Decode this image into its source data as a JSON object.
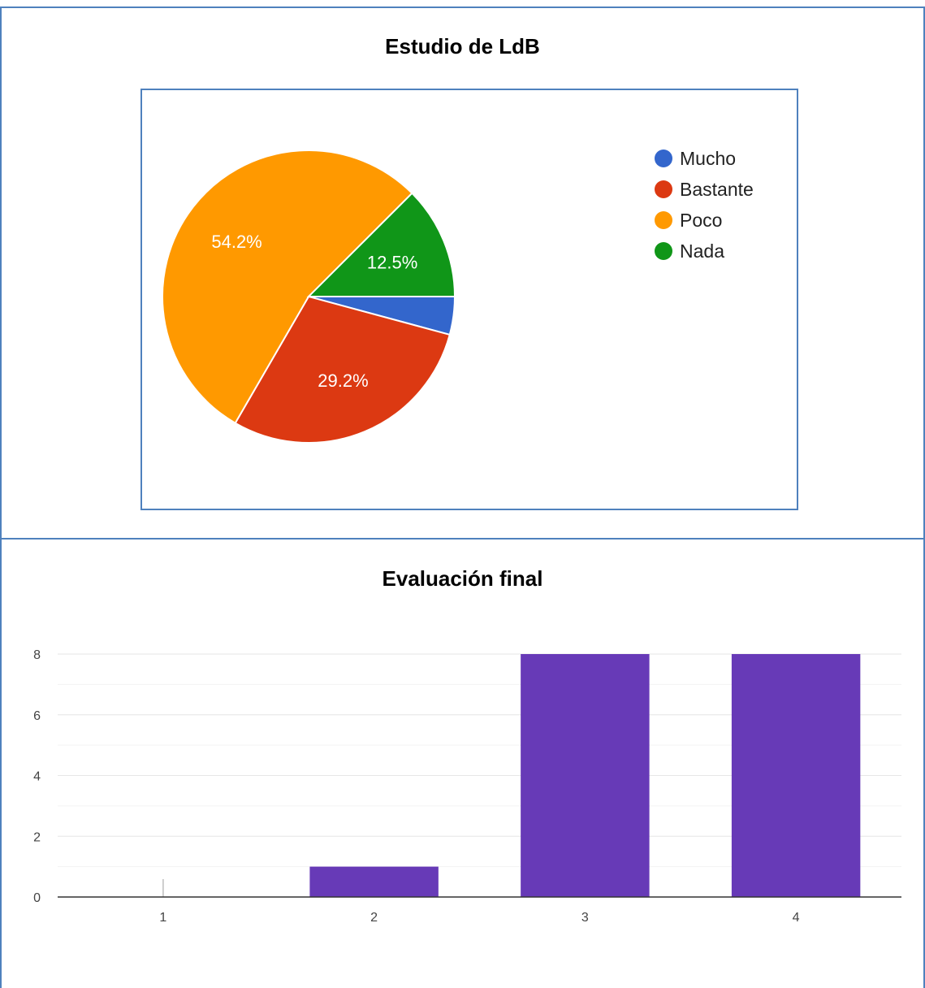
{
  "chart_data": [
    {
      "type": "pie",
      "title": "Estudio de LdB",
      "categories": [
        "Mucho",
        "Bastante",
        "Poco",
        "Nada"
      ],
      "values": [
        4.2,
        29.2,
        54.2,
        12.5
      ],
      "labels": [
        "",
        "29.2%",
        "54.2%",
        "12.5%"
      ],
      "colors": [
        "#3366cc",
        "#dc3912",
        "#ff9900",
        "#109618"
      ],
      "legend": "right"
    },
    {
      "type": "bar",
      "title": "Evaluación final",
      "categories": [
        "1",
        "2",
        "3",
        "4"
      ],
      "values": [
        0,
        1,
        8,
        8
      ],
      "yticks": [
        "0",
        "2",
        "4",
        "6",
        "8"
      ],
      "ylim": [
        0,
        8
      ],
      "grid": true,
      "color": "#673ab7"
    }
  ]
}
